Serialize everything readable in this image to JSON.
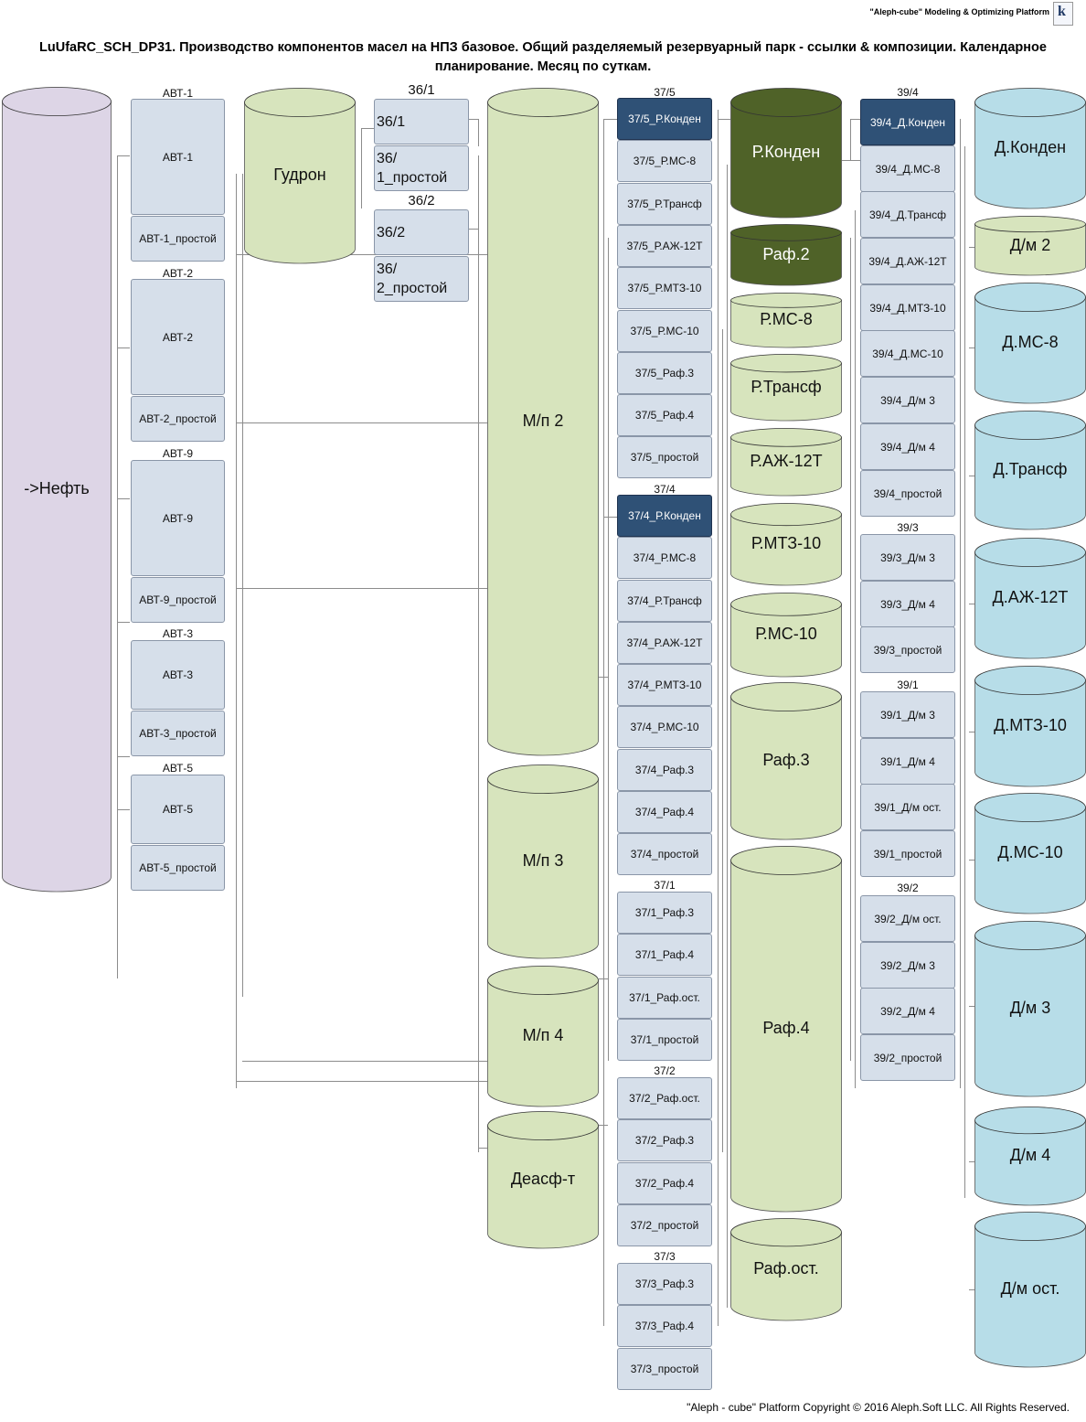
{
  "header": {
    "brand": "\"Aleph-cube\" Modeling & Optimizing Platform",
    "title": "LuUfaRC_SCH_DP31. Производство компонентов масел на НПЗ базовое. Общий разделяемый резервуарный парк - ссылки & композиции. Календарное планирование. Месяц по суткам.",
    "copyright": "\"Aleph - cube\" Platform Copyright © 2016 Aleph.Soft LLC. All Rights Reserved."
  },
  "colors": {
    "crude": "#ddd5e6",
    "green": "#d7e4bd",
    "dark_green": "#4f6228",
    "blue": "#b7dde8",
    "box": "#d6dfea",
    "box_dark": "#2f5176"
  },
  "tanks": [
    {
      "label": "->Нефть",
      "color": "crude"
    },
    {
      "label": "Гудрон",
      "color": "green"
    },
    {
      "label": "М/п 2",
      "color": "green"
    },
    {
      "label": "М/п 3",
      "color": "green"
    },
    {
      "label": "М/п 4",
      "color": "green"
    },
    {
      "label": "Деасф-т",
      "color": "green"
    },
    {
      "label": "Р.Конден",
      "color": "dark_green"
    },
    {
      "label": "Раф.2",
      "color": "dark_green"
    },
    {
      "label": "Р.МС-8",
      "color": "green"
    },
    {
      "label": "Р.Трансф",
      "color": "green"
    },
    {
      "label": "Р.АЖ-12Т",
      "color": "green"
    },
    {
      "label": "Р.МТЗ-10",
      "color": "green"
    },
    {
      "label": "Р.МС-10",
      "color": "green"
    },
    {
      "label": "Раф.3",
      "color": "green"
    },
    {
      "label": "Раф.4",
      "color": "green"
    },
    {
      "label": "Раф.ост.",
      "color": "green"
    },
    {
      "label": "Д.Конден",
      "color": "blue"
    },
    {
      "label": "Д/м 2",
      "color": "green"
    },
    {
      "label": "Д.МС-8",
      "color": "blue"
    },
    {
      "label": "Д.Трансф",
      "color": "blue"
    },
    {
      "label": "Д.АЖ-12Т",
      "color": "blue"
    },
    {
      "label": "Д.МТЗ-10",
      "color": "blue"
    },
    {
      "label": "Д.МС-10",
      "color": "blue"
    },
    {
      "label": "Д/м 3",
      "color": "blue"
    },
    {
      "label": "Д/м 4",
      "color": "blue"
    },
    {
      "label": "Д/м ост.",
      "color": "blue"
    }
  ],
  "units": [
    {
      "name": "АВТ-1",
      "modes": [
        {
          "label": "АВТ-1"
        },
        {
          "label": "АВТ-1_простой"
        }
      ]
    },
    {
      "name": "АВТ-2",
      "modes": [
        {
          "label": "АВТ-2"
        },
        {
          "label": "АВТ-2_простой"
        }
      ]
    },
    {
      "name": "АВТ-9",
      "modes": [
        {
          "label": "АВТ-9"
        },
        {
          "label": "АВТ-9_простой"
        }
      ]
    },
    {
      "name": "АВТ-3",
      "modes": [
        {
          "label": "АВТ-3"
        },
        {
          "label": "АВТ-3_простой"
        }
      ]
    },
    {
      "name": "АВТ-5",
      "modes": [
        {
          "label": "АВТ-5"
        },
        {
          "label": "АВТ-5_простой"
        }
      ]
    },
    {
      "name": "36/1",
      "modes": [
        {
          "label": "36/1"
        },
        {
          "label": "36/ 1_простой"
        }
      ]
    },
    {
      "name": "36/2",
      "modes": [
        {
          "label": "36/2"
        },
        {
          "label": "36/ 2_простой"
        }
      ]
    },
    {
      "name": "37/5",
      "modes": [
        {
          "label": "37/5_Р.Конден",
          "active": true
        },
        {
          "label": "37/5_Р.МС-8"
        },
        {
          "label": "37/5_Р.Трансф"
        },
        {
          "label": "37/5_Р.АЖ-12Т"
        },
        {
          "label": "37/5_Р.МТЗ-10"
        },
        {
          "label": "37/5_Р.МС-10"
        },
        {
          "label": "37/5_Раф.3"
        },
        {
          "label": "37/5_Раф.4"
        },
        {
          "label": "37/5_простой"
        }
      ]
    },
    {
      "name": "37/4",
      "modes": [
        {
          "label": "37/4_Р.Конден",
          "active": true
        },
        {
          "label": "37/4_Р.МС-8"
        },
        {
          "label": "37/4_Р.Трансф"
        },
        {
          "label": "37/4_Р.АЖ-12Т"
        },
        {
          "label": "37/4_Р.МТЗ-10"
        },
        {
          "label": "37/4_Р.МС-10"
        },
        {
          "label": "37/4_Раф.3"
        },
        {
          "label": "37/4_Раф.4"
        },
        {
          "label": "37/4_простой"
        }
      ]
    },
    {
      "name": "37/1",
      "modes": [
        {
          "label": "37/1_Раф.3"
        },
        {
          "label": "37/1_Раф.4"
        },
        {
          "label": "37/1_Раф.ост."
        },
        {
          "label": "37/1_простой"
        }
      ]
    },
    {
      "name": "37/2",
      "modes": [
        {
          "label": "37/2_Раф.ост."
        },
        {
          "label": "37/2_Раф.3"
        },
        {
          "label": "37/2_Раф.4"
        },
        {
          "label": "37/2_простой"
        }
      ]
    },
    {
      "name": "37/3",
      "modes": [
        {
          "label": "37/3_Раф.3"
        },
        {
          "label": "37/3_Раф.4"
        },
        {
          "label": "37/3_простой"
        }
      ]
    },
    {
      "name": "39/4",
      "modes": [
        {
          "label": "39/4_Д.Конден",
          "active": true
        },
        {
          "label": "39/4_Д.МС-8"
        },
        {
          "label": "39/4_Д.Трансф"
        },
        {
          "label": "39/4_Д.АЖ-12Т"
        },
        {
          "label": "39/4_Д.МТЗ-10"
        },
        {
          "label": "39/4_Д.МС-10"
        },
        {
          "label": "39/4_Д/м 3"
        },
        {
          "label": "39/4_Д/м 4"
        },
        {
          "label": "39/4_простой"
        }
      ]
    },
    {
      "name": "39/3",
      "modes": [
        {
          "label": "39/3_Д/м 3"
        },
        {
          "label": "39/3_Д/м 4"
        },
        {
          "label": "39/3_простой"
        }
      ]
    },
    {
      "name": "39/1",
      "modes": [
        {
          "label": "39/1_Д/м 3"
        },
        {
          "label": "39/1_Д/м 4"
        },
        {
          "label": "39/1_Д/м ост."
        },
        {
          "label": "39/1_простой"
        }
      ]
    },
    {
      "name": "39/2",
      "modes": [
        {
          "label": "39/2_Д/м ост."
        },
        {
          "label": "39/2_Д/м 3"
        },
        {
          "label": "39/2_Д/м 4"
        },
        {
          "label": "39/2_простой"
        }
      ]
    }
  ]
}
